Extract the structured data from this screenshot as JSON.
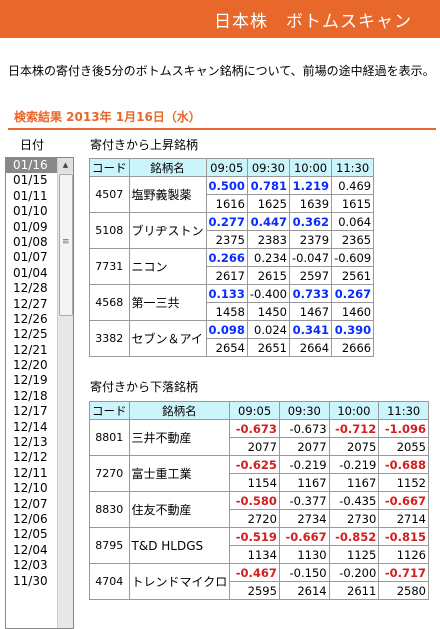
{
  "banner": {
    "title": "日本株　ボトムスキャン"
  },
  "description": "日本株の寄付き後5分のボトムスキャン銘柄について、前場の途中経過を表示。",
  "results_header": "検索結果 2013年 1月16日（水）",
  "date_label": "日付",
  "dates": [
    "01/16",
    "01/15",
    "01/11",
    "01/10",
    "01/09",
    "01/08",
    "01/07",
    "01/04",
    "12/28",
    "12/27",
    "12/26",
    "12/25",
    "12/21",
    "12/20",
    "12/19",
    "12/18",
    "12/17",
    "12/14",
    "12/13",
    "12/12",
    "12/11",
    "12/10",
    "12/07",
    "12/06",
    "12/05",
    "12/04",
    "12/03",
    "11/30"
  ],
  "selected_date": "01/16",
  "rising": {
    "label": "寄付きから上昇銘柄",
    "headers": [
      "コード",
      "銘柄名",
      "09:05",
      "09:30",
      "10:00",
      "11:30"
    ],
    "rows": [
      {
        "code": "4507",
        "name": "塩野義製薬",
        "changes": [
          "0.500",
          "0.781",
          "1.219",
          "0.469"
        ],
        "styles": [
          "up",
          "up",
          "up",
          "plain"
        ],
        "volumes": [
          "1616",
          "1625",
          "1639",
          "1615"
        ]
      },
      {
        "code": "5108",
        "name": "ブリヂストン",
        "changes": [
          "0.277",
          "0.447",
          "0.362",
          "0.064"
        ],
        "styles": [
          "up",
          "up",
          "up",
          "plain"
        ],
        "volumes": [
          "2375",
          "2383",
          "2379",
          "2365"
        ]
      },
      {
        "code": "7731",
        "name": "ニコン",
        "changes": [
          "0.266",
          "0.234",
          "-0.047",
          "-0.609"
        ],
        "styles": [
          "up",
          "plain",
          "plain",
          "plain"
        ],
        "volumes": [
          "2617",
          "2615",
          "2597",
          "2561"
        ]
      },
      {
        "code": "4568",
        "name": "第一三共",
        "changes": [
          "0.133",
          "-0.400",
          "0.733",
          "0.267"
        ],
        "styles": [
          "up",
          "plain",
          "up",
          "up"
        ],
        "volumes": [
          "1458",
          "1450",
          "1467",
          "1460"
        ]
      },
      {
        "code": "3382",
        "name": "セブン＆アイ",
        "changes": [
          "0.098",
          "0.024",
          "0.341",
          "0.390"
        ],
        "styles": [
          "up",
          "plain",
          "up",
          "up"
        ],
        "volumes": [
          "2654",
          "2651",
          "2664",
          "2666"
        ]
      }
    ]
  },
  "falling": {
    "label": "寄付きから下落銘柄",
    "headers": [
      "コード",
      "銘柄名",
      "09:05",
      "09:30",
      "10:00",
      "11:30"
    ],
    "rows": [
      {
        "code": "8801",
        "name": "三井不動産",
        "changes": [
          "-0.673",
          "-0.673",
          "-0.712",
          "-1.096"
        ],
        "styles": [
          "down",
          "plain",
          "down",
          "down"
        ],
        "volumes": [
          "2077",
          "2077",
          "2075",
          "2055"
        ]
      },
      {
        "code": "7270",
        "name": "富士重工業",
        "changes": [
          "-0.625",
          "-0.219",
          "-0.219",
          "-0.688"
        ],
        "styles": [
          "down",
          "plain",
          "plain",
          "down"
        ],
        "volumes": [
          "1154",
          "1167",
          "1167",
          "1152"
        ]
      },
      {
        "code": "8830",
        "name": "住友不動産",
        "changes": [
          "-0.580",
          "-0.377",
          "-0.435",
          "-0.667"
        ],
        "styles": [
          "down",
          "plain",
          "plain",
          "down"
        ],
        "volumes": [
          "2720",
          "2734",
          "2730",
          "2714"
        ]
      },
      {
        "code": "8795",
        "name": "T&D HLDGS",
        "changes": [
          "-0.519",
          "-0.667",
          "-0.852",
          "-0.815"
        ],
        "styles": [
          "down",
          "down",
          "down",
          "down"
        ],
        "volumes": [
          "1134",
          "1130",
          "1125",
          "1126"
        ]
      },
      {
        "code": "4704",
        "name": "トレンドマイクロ",
        "changes": [
          "-0.467",
          "-0.150",
          "-0.200",
          "-0.717"
        ],
        "styles": [
          "down",
          "plain",
          "plain",
          "down"
        ],
        "volumes": [
          "2595",
          "2614",
          "2611",
          "2580"
        ]
      }
    ]
  },
  "colors": {
    "accent": "#e8672a",
    "header_bg": "#ccf5fb",
    "up": "#0a2bff",
    "down": "#d41d1d"
  }
}
